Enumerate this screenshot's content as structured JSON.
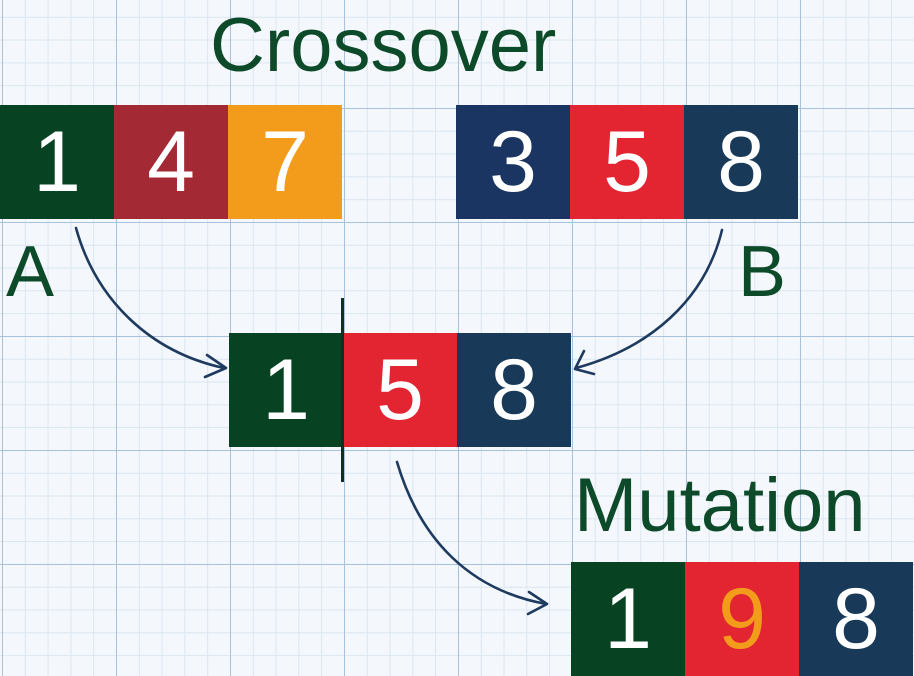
{
  "crossover_title": "Crossover",
  "mutation_title": "Mutation",
  "parent_a": {
    "label": "A",
    "genes": [
      {
        "value": "1",
        "bg": "#074222",
        "fg": "#ffffff"
      },
      {
        "value": "4",
        "bg": "#a32a34",
        "fg": "#ffffff"
      },
      {
        "value": "7",
        "bg": "#f39c1b",
        "fg": "#ffffff"
      }
    ]
  },
  "parent_b": {
    "label": "B",
    "genes": [
      {
        "value": "3",
        "bg": "#1b3562",
        "fg": "#ffffff"
      },
      {
        "value": "5",
        "bg": "#e32431",
        "fg": "#ffffff"
      },
      {
        "value": "8",
        "bg": "#183a58",
        "fg": "#ffffff"
      }
    ]
  },
  "offspring": {
    "genes": [
      {
        "value": "1",
        "bg": "#074222",
        "fg": "#ffffff"
      },
      {
        "value": "5",
        "bg": "#e32431",
        "fg": "#ffffff"
      },
      {
        "value": "8",
        "bg": "#183a58",
        "fg": "#ffffff"
      }
    ]
  },
  "mutated": {
    "genes": [
      {
        "value": "1",
        "bg": "#074222",
        "fg": "#ffffff"
      },
      {
        "value": "9",
        "bg": "#e32431",
        "fg": "#f39c1b"
      },
      {
        "value": "8",
        "bg": "#183a58",
        "fg": "#ffffff"
      }
    ]
  },
  "colors": {
    "heading": "#0d4a2a",
    "arrow": "#1e3a5f",
    "cut_line": "#0f2f22"
  }
}
